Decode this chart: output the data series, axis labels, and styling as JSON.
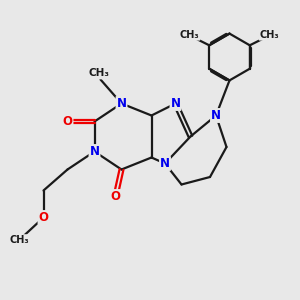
{
  "background_color": "#e8e8e8",
  "bond_color": "#1a1a1a",
  "n_color": "#0000ee",
  "o_color": "#ee0000",
  "line_width": 1.6,
  "figsize": [
    3.0,
    3.0
  ],
  "dpi": 100,
  "xlim": [
    0,
    10
  ],
  "ylim": [
    0,
    10
  ]
}
